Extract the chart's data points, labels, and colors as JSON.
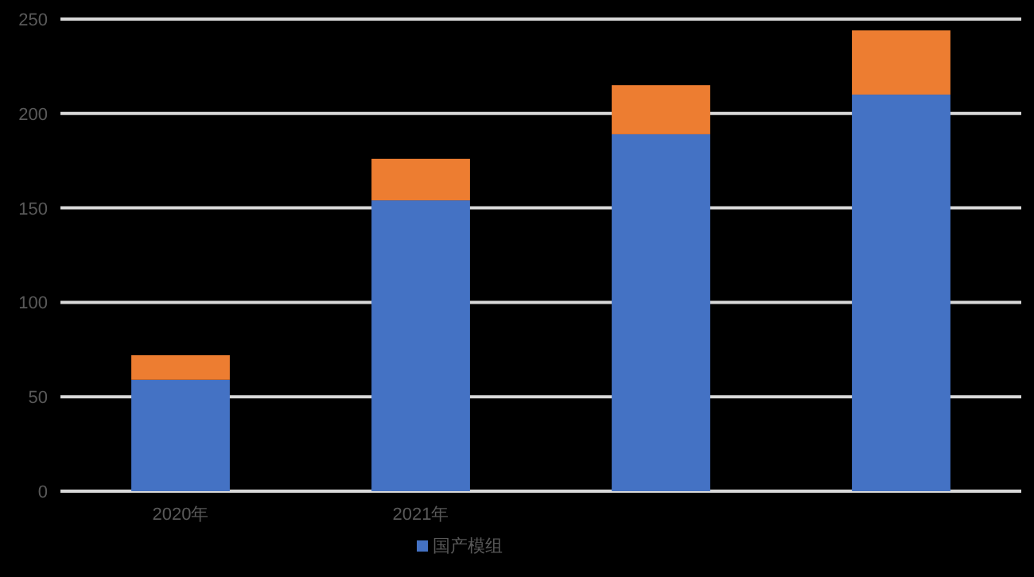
{
  "chart_data": {
    "type": "bar",
    "stacked": true,
    "categories": [
      "2020年",
      "2021年",
      null,
      null
    ],
    "series": [
      {
        "name": "国产模组",
        "color": "#4472c4",
        "values": [
          59,
          154,
          189,
          210
        ]
      },
      {
        "color": "#ed7d31",
        "values": [
          13,
          22,
          26,
          34
        ]
      }
    ],
    "ylim": [
      0,
      250
    ],
    "yticks": [
      0,
      50,
      100,
      150,
      200,
      250
    ],
    "grid": "y",
    "legend": "bottom"
  }
}
